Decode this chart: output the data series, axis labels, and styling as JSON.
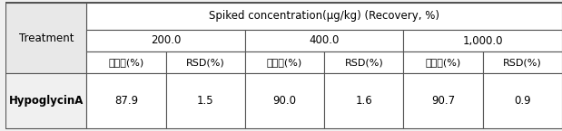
{
  "title_row": "Spiked concentration(μg/kg) (Recovery, %)",
  "col1_header": "Treatment",
  "conc_headers": [
    "200.0",
    "400.0",
    "1,000.0"
  ],
  "sub_headers": [
    "회수율(%)",
    "RSD(%)",
    "회수율(%)",
    "RSD(%)",
    "회수율(%)",
    "RSD(%)"
  ],
  "row_label": "HypoglycinA",
  "values": [
    "87.9",
    "1.5",
    "90.0",
    "1.6",
    "90.7",
    "0.9"
  ],
  "bg_color": "#f0f0f0",
  "header_bg": "#ffffff",
  "cell_bg": "#ffffff",
  "border_color": "#333333",
  "text_color": "#000000",
  "fontsize": 8.5,
  "small_fontsize": 8.0
}
